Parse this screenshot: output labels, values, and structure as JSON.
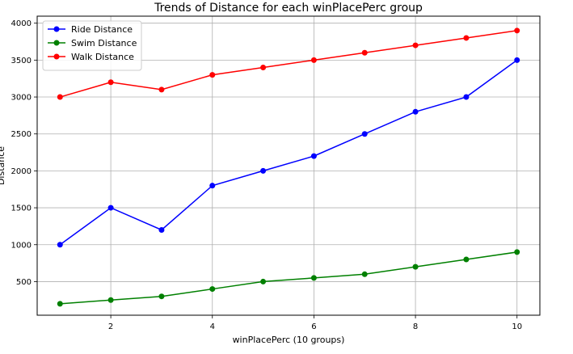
{
  "chart_data": {
    "type": "line",
    "title": "Trends of Distance for each winPlacePerc group",
    "xlabel": "winPlacePerc (10 groups)",
    "ylabel": "Distance",
    "x": [
      1,
      2,
      3,
      4,
      5,
      6,
      7,
      8,
      9,
      10
    ],
    "xticks": [
      2,
      4,
      6,
      8,
      10
    ],
    "yticks": [
      500,
      1000,
      1500,
      2000,
      2500,
      3000,
      3500,
      4000
    ],
    "xlim": [
      0.55,
      10.45
    ],
    "ylim": [
      45,
      4095
    ],
    "grid": true,
    "legend_position": "top-left",
    "series": [
      {
        "name": "Ride Distance",
        "color": "#0000ff",
        "values": [
          1000,
          1500,
          1200,
          1800,
          2000,
          2200,
          2500,
          2800,
          3000,
          3500
        ]
      },
      {
        "name": "Swim Distance",
        "color": "#008000",
        "values": [
          200,
          250,
          300,
          400,
          500,
          550,
          600,
          700,
          800,
          900
        ]
      },
      {
        "name": "Walk Distance",
        "color": "#ff0000",
        "values": [
          3000,
          3200,
          3100,
          3300,
          3400,
          3500,
          3600,
          3700,
          3800,
          3900
        ]
      }
    ]
  }
}
